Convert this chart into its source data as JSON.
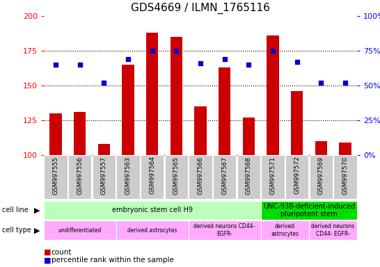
{
  "title": "GDS4669 / ILMN_1765116",
  "samples": [
    "GSM997555",
    "GSM997556",
    "GSM997557",
    "GSM997563",
    "GSM997564",
    "GSM997565",
    "GSM997566",
    "GSM997567",
    "GSM997568",
    "GSM997571",
    "GSM997572",
    "GSM997569",
    "GSM997570"
  ],
  "counts": [
    130,
    131,
    108,
    165,
    188,
    185,
    135,
    163,
    127,
    186,
    146,
    110,
    109
  ],
  "percentiles": [
    65,
    65,
    52,
    69,
    75,
    75,
    66,
    69,
    65,
    75,
    67,
    52,
    52
  ],
  "ymin": 100,
  "ymax": 200,
  "y2min": 0,
  "y2max": 100,
  "yticks": [
    100,
    125,
    150,
    175,
    200
  ],
  "y2ticks": [
    0,
    25,
    50,
    75,
    100
  ],
  "bar_color": "#cc0000",
  "dot_color": "#0000cc",
  "cell_line_row": [
    {
      "label": "embryonic stem cell H9",
      "start": 0,
      "end": 8,
      "color": "#bbffbb"
    },
    {
      "label": "UNC-93B-deficient-induced\npluripotent stem",
      "start": 9,
      "end": 12,
      "color": "#00dd00"
    }
  ],
  "cell_type_row": [
    {
      "label": "undifferentiated",
      "start": 0,
      "end": 2,
      "color": "#ffaaff"
    },
    {
      "label": "derived astrocytes",
      "start": 3,
      "end": 5,
      "color": "#ffaaff"
    },
    {
      "label": "derived neurons CD44-\nEGFR-",
      "start": 6,
      "end": 8,
      "color": "#ffaaff"
    },
    {
      "label": "derived\nastrocytes",
      "start": 9,
      "end": 10,
      "color": "#ffaaff"
    },
    {
      "label": "derived neurons\nCD44- EGFR-",
      "start": 11,
      "end": 12,
      "color": "#ffaaff"
    }
  ],
  "bg_color": "#ffffff",
  "tick_label_bg": "#cccccc",
  "grid_lines": [
    125,
    150,
    175
  ],
  "bar_width": 0.5,
  "dot_size": 5,
  "title_fontsize": 11,
  "axis_fontsize": 8,
  "sample_fontsize": 6.5,
  "annotation_fontsize": 7,
  "legend_fontsize": 7.5
}
